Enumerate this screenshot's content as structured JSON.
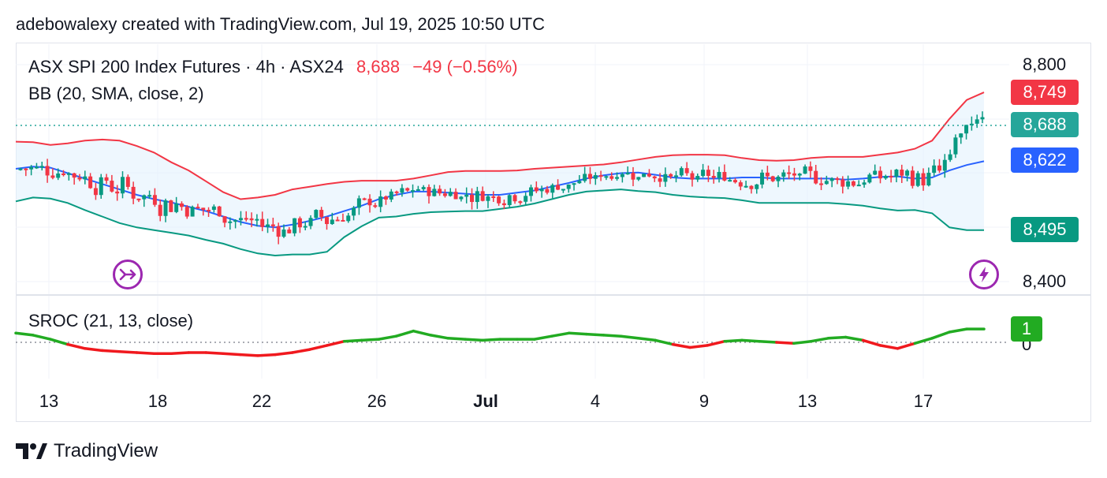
{
  "caption": "adebowalexy created with TradingView.com, Jul 19, 2025 10:50 UTC",
  "legend": {
    "symbol_line": "ASX SPI 200 Index Futures · 4h · ASX24",
    "price": "8,688",
    "change": "−49 (−0.56%)",
    "bb": "BB (20, SMA, close, 2)",
    "sroc": "SROC (21, 13, close)"
  },
  "brand": "TradingView",
  "colors": {
    "up": "#089981",
    "down": "#f23645",
    "bb_upper": "#f23645",
    "bb_basis": "#2962ff",
    "bb_lower": "#089981",
    "bb_fill": "#e3f2fd",
    "sroc_up": "#22ab22",
    "sroc_down": "#f0191e",
    "last_price": "#26a69a",
    "icon": "#9c27b0"
  },
  "chart_data": [
    {
      "type": "candlestick",
      "title": "ASX SPI 200 Index Futures · 4h · ASX24",
      "y_axis_ticks": [
        "8,800",
        "8,400"
      ],
      "y_axis_ticks_values": [
        8800,
        8400
      ],
      "x_axis_ticks": [
        "13",
        "18",
        "22",
        "26",
        "Jul",
        "4",
        "9",
        "13",
        "17"
      ],
      "ylim": [
        8370,
        8860
      ],
      "last_price": 8688,
      "tags": {
        "bb_upper": "8,749",
        "last": "8,688",
        "bb_basis": "8,622",
        "bb_lower": "8,495"
      },
      "bb_upper_path": [
        8658,
        8657,
        8652,
        8655,
        8660,
        8662,
        8660,
        8650,
        8638,
        8620,
        8605,
        8585,
        8565,
        8552,
        8555,
        8560,
        8570,
        8575,
        8580,
        8584,
        8586,
        8586,
        8586,
        8590,
        8596,
        8602,
        8604,
        8604,
        8604,
        8605,
        8608,
        8610,
        8612,
        8614,
        8616,
        8620,
        8625,
        8630,
        8633,
        8634,
        8634,
        8633,
        8628,
        8624,
        8623,
        8624,
        8628,
        8630,
        8630,
        8630,
        8634,
        8638,
        8645,
        8660,
        8700,
        8735,
        8749
      ],
      "bb_basis_path": [
        8608,
        8612,
        8610,
        8600,
        8590,
        8580,
        8570,
        8560,
        8552,
        8546,
        8538,
        8530,
        8520,
        8510,
        8503,
        8500,
        8505,
        8512,
        8520,
        8530,
        8540,
        8552,
        8560,
        8566,
        8566,
        8564,
        8562,
        8560,
        8560,
        8564,
        8568,
        8575,
        8582,
        8590,
        8596,
        8600,
        8601,
        8597,
        8592,
        8590,
        8590,
        8590,
        8592,
        8592,
        8590,
        8590,
        8590,
        8590,
        8588,
        8590,
        8593,
        8594,
        8590,
        8592,
        8605,
        8615,
        8622
      ],
      "bb_lower_path": [
        8548,
        8555,
        8553,
        8545,
        8532,
        8520,
        8508,
        8500,
        8495,
        8490,
        8485,
        8477,
        8470,
        8460,
        8452,
        8448,
        8450,
        8450,
        8455,
        8482,
        8502,
        8518,
        8520,
        8525,
        8528,
        8529,
        8530,
        8530,
        8534,
        8538,
        8544,
        8552,
        8560,
        8566,
        8568,
        8570,
        8567,
        8565,
        8560,
        8557,
        8555,
        8554,
        8550,
        8545,
        8545,
        8545,
        8545,
        8545,
        8543,
        8540,
        8535,
        8531,
        8532,
        8526,
        8500,
        8495,
        8495
      ],
      "sroc_panel": {
        "label": "SROC (21, 13, close)",
        "tick": "0",
        "last_value_tag": "1",
        "values": [
          0.9,
          0.7,
          0.3,
          -0.2,
          -0.6,
          -0.8,
          -0.9,
          -1.0,
          -1.1,
          -1.1,
          -1.0,
          -1.0,
          -1.1,
          -1.2,
          -1.3,
          -1.2,
          -1.0,
          -0.7,
          -0.3,
          0.1,
          0.2,
          0.3,
          0.6,
          1.1,
          0.7,
          0.4,
          0.3,
          0.2,
          0.3,
          0.3,
          0.3,
          0.6,
          0.9,
          0.8,
          0.7,
          0.6,
          0.4,
          0.2,
          -0.2,
          -0.5,
          -0.3,
          0.1,
          0.2,
          0.1,
          0.0,
          -0.1,
          0.1,
          0.4,
          0.5,
          0.2,
          -0.3,
          -0.6,
          -0.1,
          0.4,
          1.0,
          1.3,
          1.3
        ]
      }
    }
  ]
}
